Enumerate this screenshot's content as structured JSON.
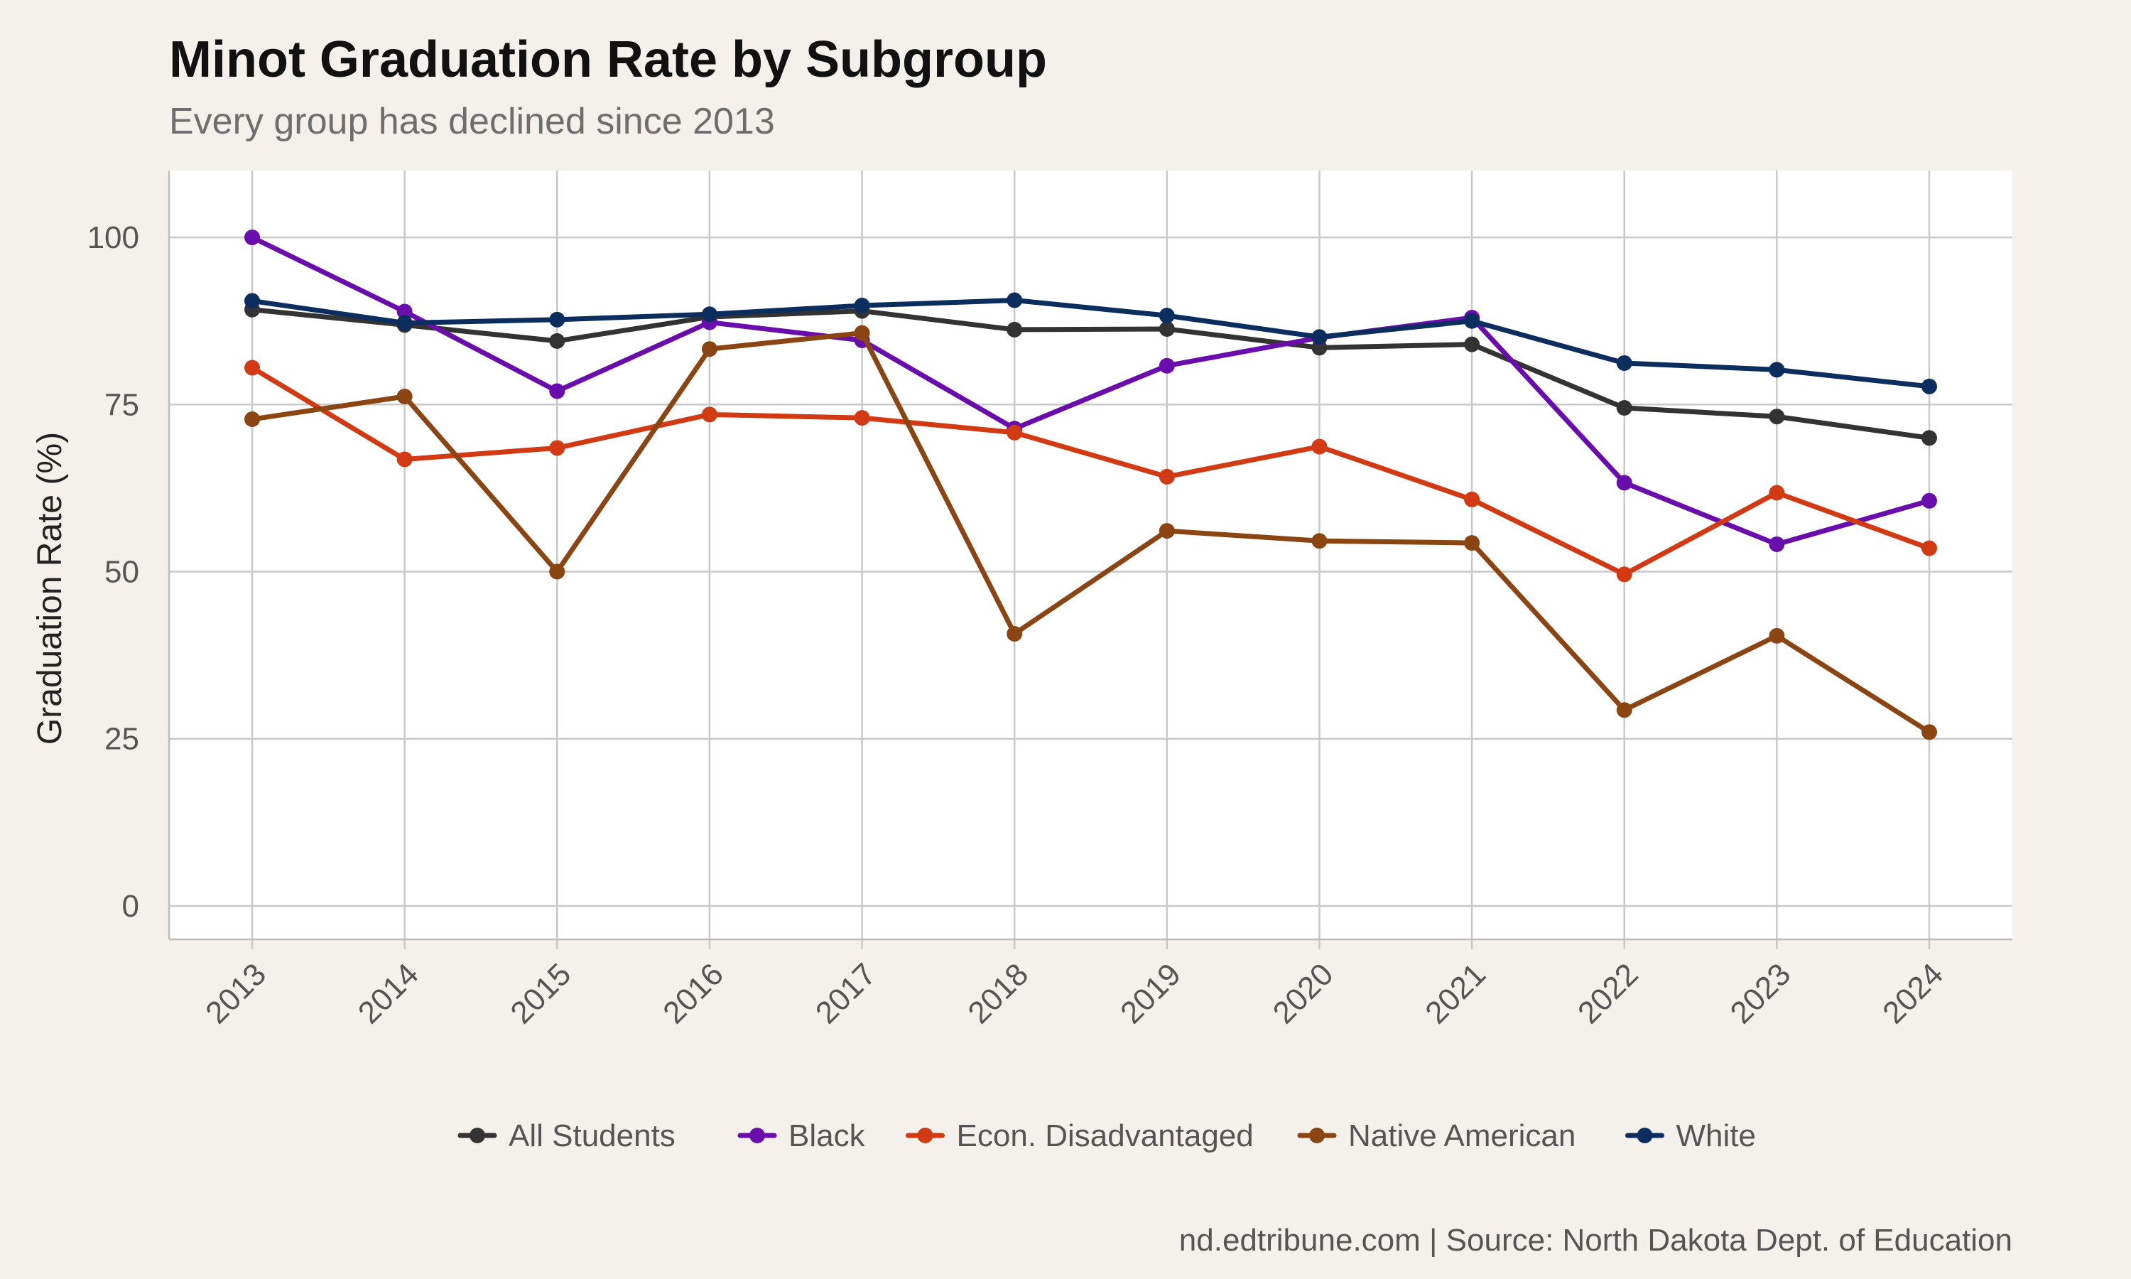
{
  "chart_data": {
    "type": "line",
    "title": "Minot Graduation Rate by Subgroup",
    "subtitle": "Every group has declined since 2013",
    "xlabel": "",
    "ylabel": "Graduation Rate (%)",
    "caption": "nd.edtribune.com | Source: North Dakota Dept. of Education",
    "x": [
      "2013",
      "2014",
      "2015",
      "2016",
      "2017",
      "2018",
      "2019",
      "2020",
      "2021",
      "2022",
      "2023",
      "2024"
    ],
    "ylim": [
      -5,
      110
    ],
    "yticks": [
      0,
      25,
      50,
      75,
      100
    ],
    "ytick_labels": [
      "0",
      "25",
      "50",
      "75",
      "100"
    ],
    "grid": true,
    "legend_position": "bottom",
    "series": [
      {
        "name": "All Students",
        "color": "#333333",
        "values": [
          89.2,
          86.9,
          84.5,
          88.1,
          89.0,
          86.2,
          86.3,
          83.5,
          84.0,
          74.5,
          73.2,
          70.0
        ]
      },
      {
        "name": "Black",
        "color": "#6a0dad",
        "values": [
          100.0,
          88.9,
          77.0,
          87.3,
          84.6,
          71.4,
          80.8,
          85.0,
          88.0,
          63.3,
          54.1,
          60.6
        ]
      },
      {
        "name": "Econ. Disadvantaged",
        "color": "#d13a12",
        "values": [
          80.5,
          66.8,
          68.5,
          73.5,
          73.0,
          70.8,
          64.2,
          68.7,
          60.8,
          49.6,
          61.8,
          53.5
        ]
      },
      {
        "name": "Native American",
        "color": "#8b4513",
        "values": [
          72.8,
          76.2,
          50.0,
          83.3,
          85.7,
          40.7,
          56.1,
          54.6,
          54.3,
          29.3,
          40.4,
          26.0
        ]
      },
      {
        "name": "White",
        "color": "#0b2e5e",
        "values": [
          90.5,
          87.2,
          87.7,
          88.5,
          89.8,
          90.6,
          88.3,
          85.1,
          87.5,
          81.2,
          80.2,
          77.7
        ]
      }
    ]
  }
}
